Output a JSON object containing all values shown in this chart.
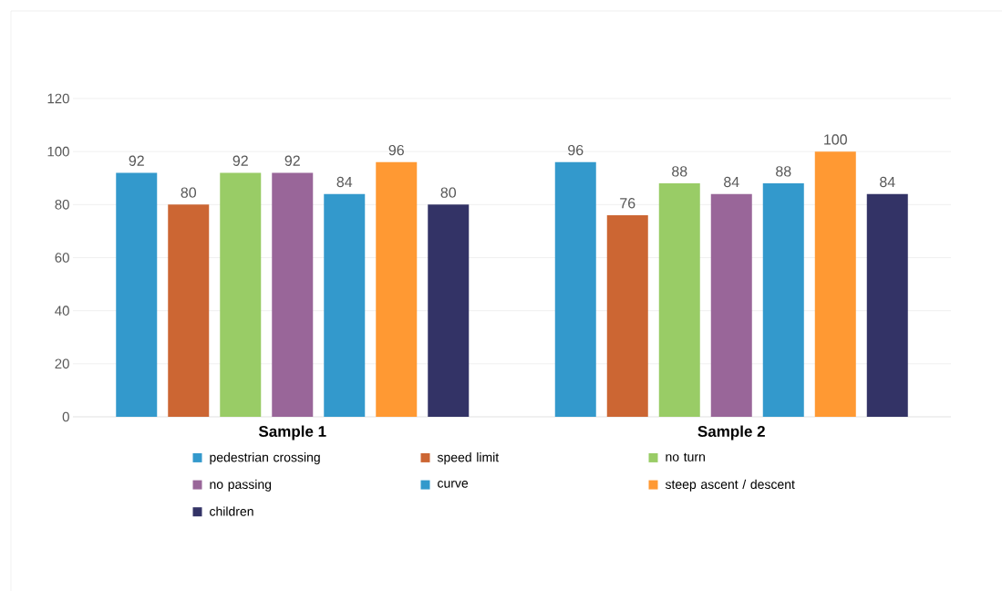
{
  "chart_data": {
    "type": "bar",
    "categories": [
      "Sample 1",
      "Sample 2"
    ],
    "series": [
      {
        "name": "pedestrian crossing",
        "color": "#3399cc",
        "values": [
          92,
          96
        ]
      },
      {
        "name": "speed limit",
        "color": "#cc6633",
        "values": [
          80,
          76
        ]
      },
      {
        "name": "no turn",
        "color": "#99cc66",
        "values": [
          92,
          88
        ]
      },
      {
        "name": "no passing",
        "color": "#996699",
        "values": [
          92,
          84
        ]
      },
      {
        "name": "curve",
        "color": "#3399cc",
        "values": [
          84,
          88
        ]
      },
      {
        "name": "steep ascent / descent",
        "color": "#ff9933",
        "values": [
          96,
          100
        ]
      },
      {
        "name": "children",
        "color": "#333366",
        "values": [
          80,
          84
        ]
      }
    ],
    "ylim": [
      0,
      120
    ],
    "yticks": [
      0,
      20,
      40,
      60,
      80,
      100,
      120
    ],
    "grid": "y",
    "legend": "bottom",
    "data_labels": true
  }
}
